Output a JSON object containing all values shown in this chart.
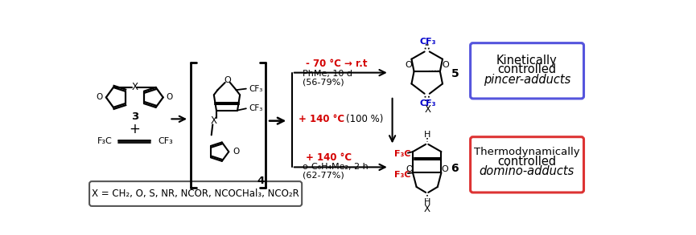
{
  "bg_color": "#ffffff",
  "figsize": [
    8.65,
    2.93
  ],
  "dpi": 100,
  "red_color": "#d40000",
  "blue_color": "#0000cc",
  "black_color": "#000000",
  "gray_color": "#444444",
  "condition_top_red": "- 70 °C → r.t",
  "condition_top_black1": "PhMe, 10 d",
  "condition_top_black2": "(56-79%)",
  "condition_mid_red": "+ 140 °C",
  "condition_mid_black": "(100 %)",
  "condition_bot_red": "+ 140 °C",
  "condition_bot_black1": "o-C₆H₄Me₂, 2 h",
  "condition_bot_black2": "(62-77%)",
  "box_top_line1": "Kinetically",
  "box_top_line2": "controlled",
  "box_top_line3": "pincer-adducts",
  "box_top_color": "#5555dd",
  "box_bot_line1": "Thermodynamically",
  "box_bot_line2": "controlled",
  "box_bot_line3": "domino-adducts",
  "box_bot_color": "#dd3333",
  "x_def_text": "X = CH₂, O, S, NR, NCOR, NCOCHal₃, NCO₂R"
}
